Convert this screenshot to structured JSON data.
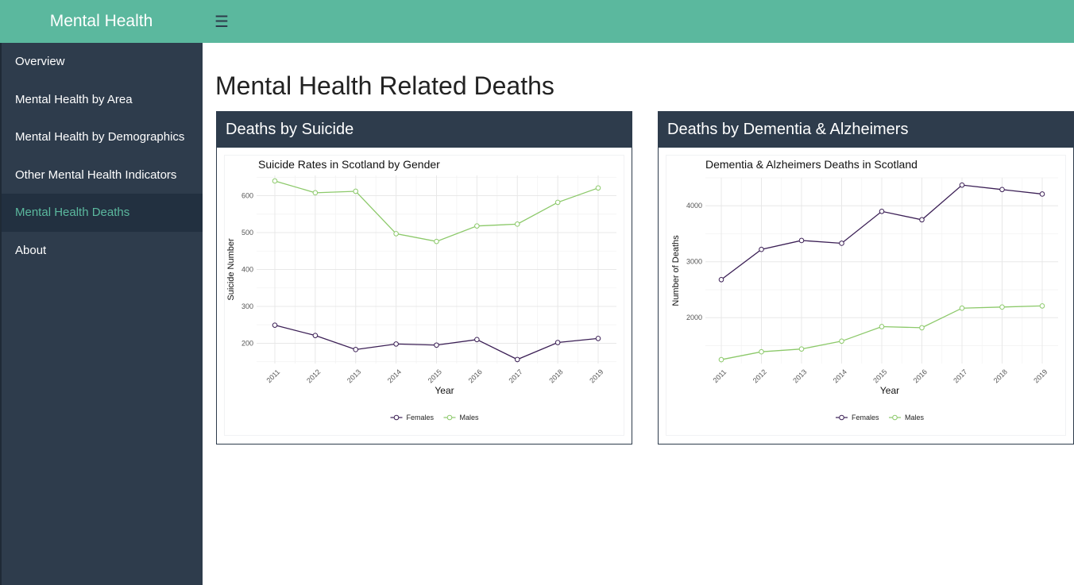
{
  "app": {
    "brand": "Mental Health"
  },
  "sidebar": {
    "items": [
      {
        "label": "Overview"
      },
      {
        "label": "Mental Health by Area"
      },
      {
        "label": "Mental Health by Demographics"
      },
      {
        "label": "Other Mental Health Indicators"
      },
      {
        "label": "Mental Health Deaths"
      },
      {
        "label": "About"
      }
    ],
    "active_index": 4
  },
  "main": {
    "title": "Mental Health Related Deaths",
    "boxes": [
      {
        "header": "Deaths by Suicide"
      },
      {
        "header": "Deaths by Dementia & Alzheimers"
      }
    ]
  },
  "colors": {
    "accent": "#5bb89e",
    "sidebar": "#2e3c4c",
    "females": "#3b1f55",
    "males": "#8cc96a"
  },
  "chart_data": [
    {
      "type": "line",
      "title": "Suicide Rates in Scotland by Gender",
      "xlabel": "Year",
      "ylabel": "Suicide Number",
      "x": [
        2011,
        2012,
        2013,
        2014,
        2015,
        2016,
        2017,
        2018,
        2019
      ],
      "xticks": [
        "2011",
        "2012",
        "2013",
        "2014",
        "2015",
        "2016",
        "2017",
        "2018",
        "2019"
      ],
      "yticks": [
        200,
        300,
        400,
        500,
        600
      ],
      "ylim": [
        145,
        655
      ],
      "series": [
        {
          "name": "Females",
          "values": [
            249,
            221,
            183,
            198,
            195,
            210,
            156,
            202,
            213
          ]
        },
        {
          "name": "Males",
          "values": [
            640,
            608,
            612,
            497,
            476,
            518,
            523,
            582,
            621
          ]
        }
      ],
      "legend": "bottom"
    },
    {
      "type": "line",
      "title": "Dementia & Alzheimers Deaths in Scotland",
      "xlabel": "Year",
      "ylabel": "Number of Deaths",
      "x": [
        2011,
        2012,
        2013,
        2014,
        2015,
        2016,
        2017,
        2018,
        2019
      ],
      "xticks": [
        "2011",
        "2012",
        "2013",
        "2014",
        "2015",
        "2016",
        "2017",
        "2018",
        "2019"
      ],
      "yticks": [
        2000,
        3000,
        4000
      ],
      "ylim": [
        1180,
        4500
      ],
      "series": [
        {
          "name": "Females",
          "values": [
            2680,
            3220,
            3380,
            3330,
            3900,
            3750,
            4370,
            4290,
            4210
          ]
        },
        {
          "name": "Males",
          "values": [
            1250,
            1390,
            1440,
            1580,
            1840,
            1820,
            2170,
            2190,
            2210
          ]
        }
      ],
      "legend": "bottom"
    }
  ]
}
